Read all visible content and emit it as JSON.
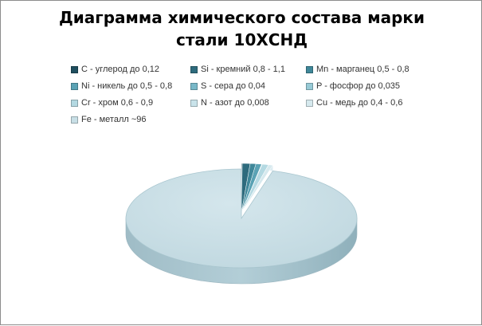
{
  "chart_data": {
    "type": "pie",
    "title_line1": "Диаграмма химического состава марки",
    "title_line2": "стали 10ХСНД",
    "legend_placement": "top",
    "slices": [
      {
        "label": "C - углерод до 0,12",
        "value": 0.12,
        "color": "#1f4f5f"
      },
      {
        "label": "Si - кремний 0,8 - 1,1",
        "value": 1.1,
        "color": "#2e6b7d"
      },
      {
        "label": "Mn - марганец 0,5 - 0,8",
        "value": 0.8,
        "color": "#3f8799"
      },
      {
        "label": "Ni - никель до 0,5 - 0,8",
        "value": 0.8,
        "color": "#5aa2b4"
      },
      {
        "label": "S - сера до 0,04",
        "value": 0.04,
        "color": "#78b8c8"
      },
      {
        "label": "P - фосфор до 0,035",
        "value": 0.035,
        "color": "#97cad6"
      },
      {
        "label": "Cr - хром 0,6 - 0,9",
        "value": 0.9,
        "color": "#b4d9e2"
      },
      {
        "label": "N - азот до 0,008",
        "value": 0.008,
        "color": "#c9e3ea"
      },
      {
        "label": "Cu - медь до 0,4 - 0,6",
        "value": 0.6,
        "color": "#d6e9ee"
      },
      {
        "label": "Fe - металл ~96",
        "value": 96,
        "color": "#c8dfe6"
      }
    ]
  }
}
